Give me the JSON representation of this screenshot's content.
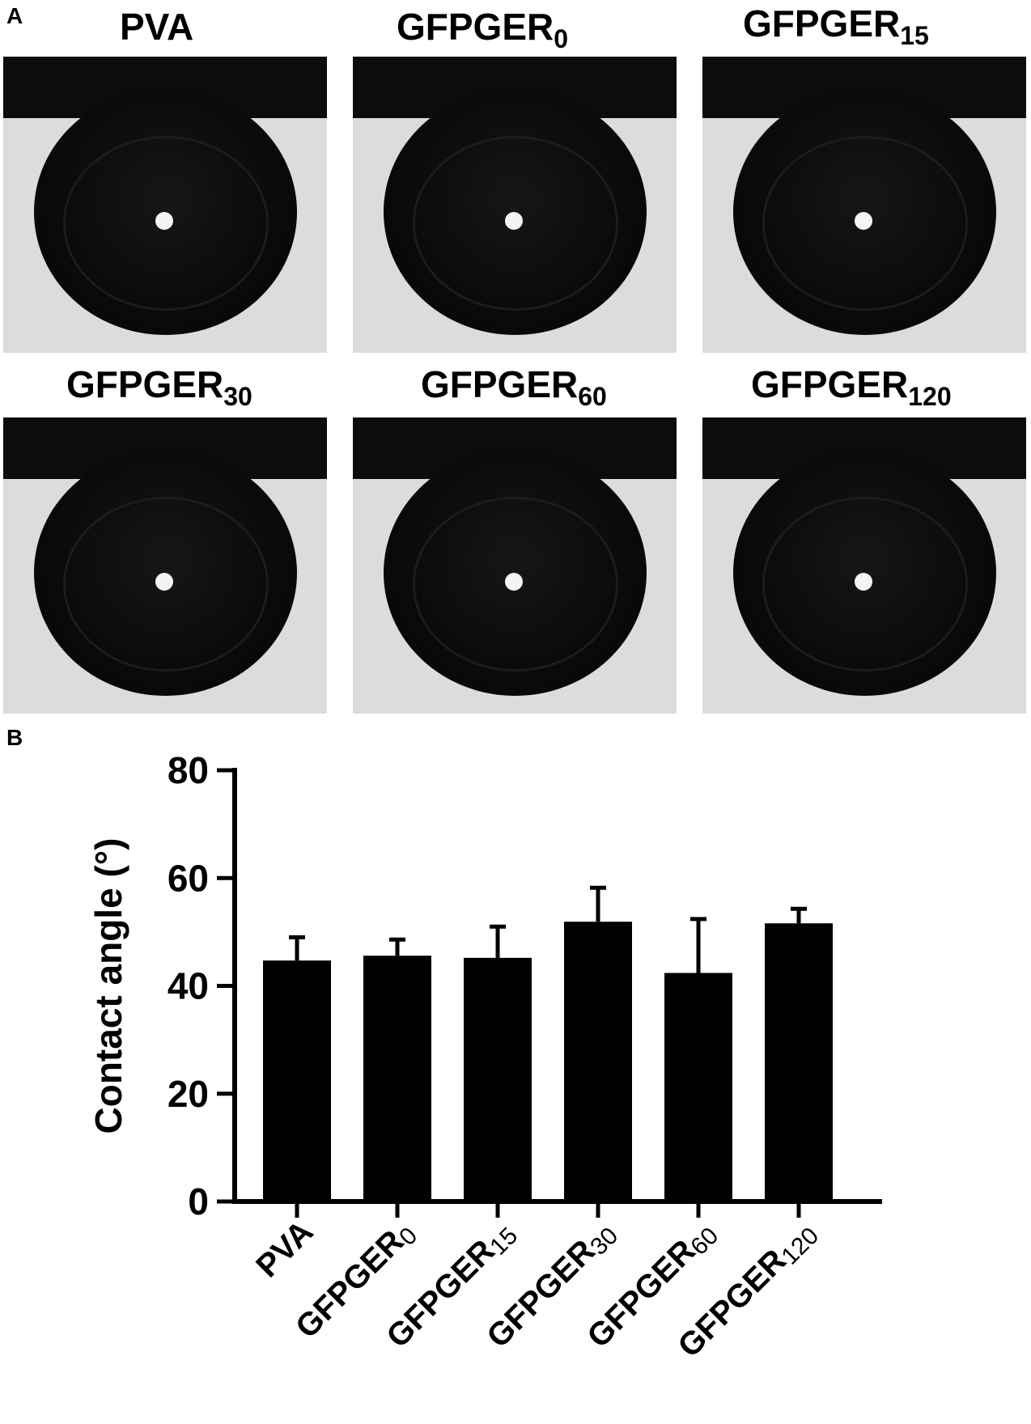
{
  "panels": {
    "a_letter": "A",
    "b_letter": "B"
  },
  "photos": [
    {
      "base": "PVA",
      "sub": ""
    },
    {
      "base": "GFPGER",
      "sub": "0"
    },
    {
      "base": "GFPGER",
      "sub": "15"
    },
    {
      "base": "GFPGER",
      "sub": "30"
    },
    {
      "base": "GFPGER",
      "sub": "60"
    },
    {
      "base": "GFPGER",
      "sub": "120"
    }
  ],
  "chart_data": {
    "type": "bar",
    "categories": [
      {
        "base": "PVA",
        "sub": ""
      },
      {
        "base": "GFPGER",
        "sub": "0"
      },
      {
        "base": "GFPGER",
        "sub": "15"
      },
      {
        "base": "GFPGER",
        "sub": "30"
      },
      {
        "base": "GFPGER",
        "sub": "60"
      },
      {
        "base": "GFPGER",
        "sub": "120"
      }
    ],
    "values": [
      44.7,
      45.6,
      45.2,
      51.9,
      42.4,
      51.6
    ],
    "errors": [
      4.3,
      3.0,
      5.8,
      6.3,
      10.0,
      2.7
    ],
    "ylabel": "Contact angle (°)",
    "ylim": [
      0,
      80
    ],
    "yticks": [
      0,
      20,
      40,
      60,
      80
    ],
    "bar_color": "#000000",
    "grid": false
  }
}
